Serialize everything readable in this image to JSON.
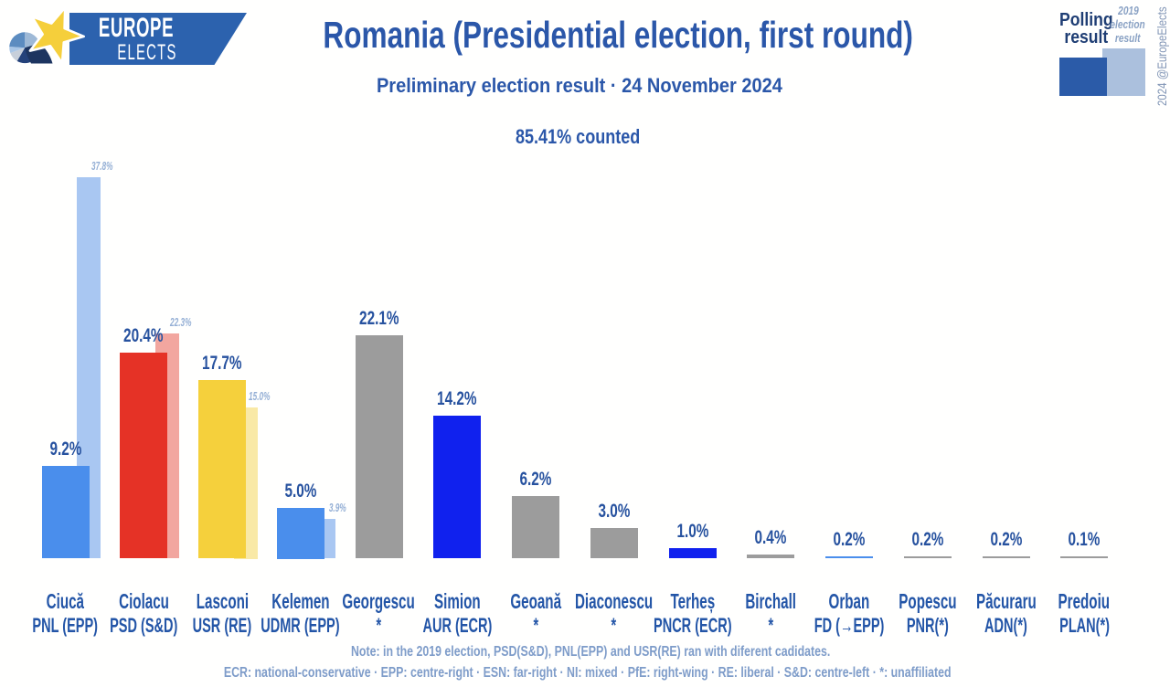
{
  "header": {
    "logo": {
      "line1": "EUROPE",
      "line2": "ELECTS"
    },
    "title": "Romania (Presidential election, first round)",
    "subtitle": "Preliminary election result · 24 November 2024",
    "counted": "85.41% counted"
  },
  "legend": {
    "polling_label": "Polling result",
    "election_label_lines": [
      "2019",
      "election",
      "result"
    ],
    "polling_color": "#2b5ba8",
    "election_color": "#abc0dd"
  },
  "credit": "2024 @EuropeElects",
  "notes": {
    "line1": "Note: in the 2019 election, PSD(S&D), PNL(EPP) and USR(RE) ran with diferent cadidates.",
    "line2": "ECR: national-conservative · EPP: centre-right · ESN: far-right · NI: mixed · PfE: right-wing · RE: liberal · S&D: centre-left · *: unaffiliated"
  },
  "chart_data": {
    "type": "bar",
    "title": "Romania (Presidential election, first round)",
    "subtitle": "Preliminary election result · 24 November 2024",
    "counted": "85.41% counted",
    "unit": "%",
    "ylim": [
      0,
      40
    ],
    "grid": false,
    "legend_position": "top-right",
    "categories": [
      "Ciucă",
      "Ciolacu",
      "Lasconi",
      "Kelemen",
      "Georgescu",
      "Simion",
      "Geoană",
      "Diaconescu",
      "Terheș",
      "Birchall",
      "Orban",
      "Popescu",
      "Păcuraru",
      "Predoiu"
    ],
    "parties": [
      "PNL (EPP)",
      "PSD (S&D)",
      "USR (RE)",
      "UDMR (EPP)",
      "*",
      "AUR (ECR)",
      "*",
      "*",
      "PNCR (ECR)",
      "*",
      "FD (→EPP)",
      "PNR(*)",
      "ADN(*)",
      "PLAN(*)"
    ],
    "series": [
      {
        "name": "Polling result",
        "values": [
          9.2,
          20.4,
          17.7,
          5.0,
          22.1,
          14.2,
          6.2,
          3.0,
          1.0,
          0.4,
          0.2,
          0.2,
          0.2,
          0.1
        ]
      },
      {
        "name": "2019 election result",
        "values": [
          37.8,
          22.3,
          15.0,
          3.9,
          null,
          null,
          null,
          null,
          null,
          null,
          null,
          null,
          null,
          null
        ]
      }
    ],
    "bar_colors": [
      "#4a8eec",
      "#e53226",
      "#f5d03c",
      "#4a8eec",
      "#9c9c9c",
      "#1021ee",
      "#9c9c9c",
      "#9c9c9c",
      "#1021ee",
      "#9c9c9c",
      "#4a8eec",
      "#9c9c9c",
      "#9c9c9c",
      "#9c9c9c"
    ],
    "bar_colors_2019": [
      "#a9c7f2",
      "#f2a69f",
      "#f9e9a6",
      "#a9c7f2",
      null,
      null,
      null,
      null,
      null,
      null,
      null,
      null,
      null,
      null
    ]
  }
}
